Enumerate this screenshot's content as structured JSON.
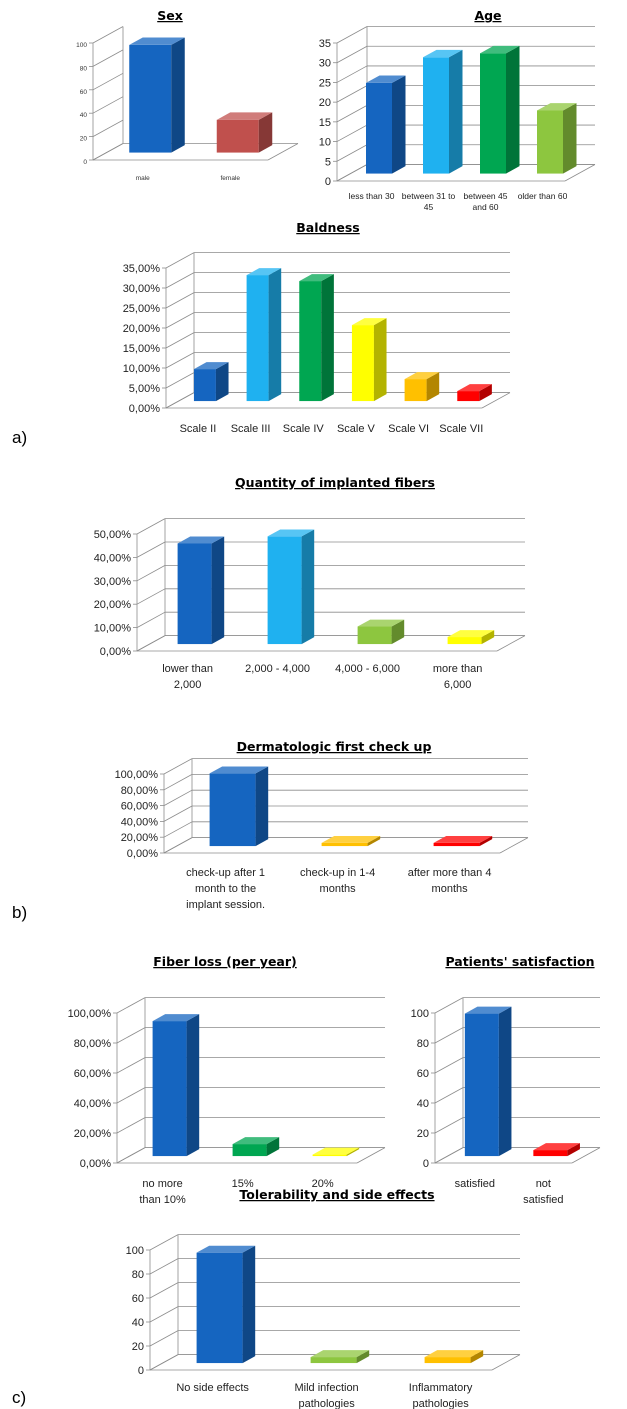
{
  "panel_labels": [
    "a)",
    "b)",
    "c)"
  ],
  "chart_data": [
    {
      "id": "sex",
      "type": "bar",
      "title": "Sex",
      "categories": [
        "male",
        "female"
      ],
      "values": [
        92,
        28
      ],
      "colors": [
        "#1565C0",
        "#C0504D"
      ],
      "ylim": [
        0,
        100
      ],
      "yticks": [
        "0",
        "20",
        "40",
        "60",
        "80",
        "100"
      ],
      "grid": false
    },
    {
      "id": "age",
      "type": "bar",
      "title": "Age",
      "categories": [
        [
          "less than 30"
        ],
        [
          "between 31 to",
          "45"
        ],
        [
          "between 45",
          "and 60"
        ],
        [
          "older than 60"
        ]
      ],
      "values": [
        23,
        29.5,
        30.5,
        16
      ],
      "colors": [
        "#1565C0",
        "#1FB1F0",
        "#00A651",
        "#8DC63F"
      ],
      "ylim": [
        0,
        35
      ],
      "yticks": [
        "0",
        "5",
        "10",
        "15",
        "20",
        "25",
        "30",
        "35"
      ],
      "grid": true
    },
    {
      "id": "baldness",
      "type": "bar",
      "title": "Baldness",
      "categories": [
        [
          "Scale II"
        ],
        [
          "Scale III"
        ],
        [
          "Scale IV"
        ],
        [
          "Scale V"
        ],
        [
          "Scale VI"
        ],
        [
          "Scale VII"
        ]
      ],
      "values": [
        8,
        31.5,
        30,
        19,
        5.5,
        2.5
      ],
      "colors": [
        "#1565C0",
        "#1FB1F0",
        "#00A651",
        "#FFFF00",
        "#FFC000",
        "#FF0000"
      ],
      "ylim": [
        0,
        35
      ],
      "yticks": [
        "0,00%",
        "5,00%",
        "10,00%",
        "15,00%",
        "20,00%",
        "25,00%",
        "30,00%",
        "35,00%"
      ],
      "grid": true
    },
    {
      "id": "fibers",
      "type": "bar",
      "title": "Quantity of implanted fibers",
      "categories": [
        [
          "lower than",
          "2,000"
        ],
        [
          "2,000 - 4,000"
        ],
        [
          "4,000 - 6,000"
        ],
        [
          "more than",
          "6,000"
        ]
      ],
      "values": [
        43,
        46,
        7.5,
        3
      ],
      "colors": [
        "#1565C0",
        "#1FB1F0",
        "#8DC63F",
        "#FFFF00"
      ],
      "ylim": [
        0,
        50
      ],
      "yticks": [
        "0,00%",
        "10,00%",
        "20,00%",
        "30,00%",
        "40,00%",
        "50,00%"
      ],
      "grid": true
    },
    {
      "id": "dermatologic",
      "type": "bar",
      "title": "Dermatologic first check up",
      "categories": [
        [
          "check-up after 1",
          "month to the",
          "implant session."
        ],
        [
          "check-up in 1-4",
          "months"
        ],
        [
          "after more than 4",
          "months"
        ]
      ],
      "values": [
        92,
        4,
        4
      ],
      "colors": [
        "#1565C0",
        "#FFC000",
        "#FF0000"
      ],
      "ylim": [
        0,
        100
      ],
      "yticks": [
        "0,00%",
        "20,00%",
        "40,00%",
        "60,00%",
        "80,00%",
        "100,00%"
      ],
      "grid": true
    },
    {
      "id": "fiberloss",
      "type": "bar",
      "title": "Fiber loss (per year)",
      "categories": [
        [
          "no more",
          "than 10%"
        ],
        [
          "15%"
        ],
        [
          "20%"
        ]
      ],
      "values": [
        90,
        8,
        1
      ],
      "colors": [
        "#1565C0",
        "#00A651",
        "#FFFF00"
      ],
      "ylim": [
        0,
        100
      ],
      "yticks": [
        "0,00%",
        "20,00%",
        "40,00%",
        "60,00%",
        "80,00%",
        "100,00%"
      ],
      "grid": true
    },
    {
      "id": "satisfaction",
      "type": "bar",
      "title": "Patients' satisfaction",
      "categories": [
        [
          "satisfied"
        ],
        [
          "not",
          "satisfied"
        ]
      ],
      "values": [
        95,
        4
      ],
      "colors": [
        "#1565C0",
        "#FF0000"
      ],
      "ylim": [
        0,
        100
      ],
      "yticks": [
        "0",
        "20",
        "40",
        "60",
        "80",
        "100"
      ],
      "grid": true
    },
    {
      "id": "tolerability",
      "type": "bar",
      "title": "Tolerability and side effects",
      "categories": [
        [
          "No side effects"
        ],
        [
          "Mild infection",
          "pathologies"
        ],
        [
          "Inflammatory",
          "pathologies"
        ]
      ],
      "values": [
        92,
        5,
        5
      ],
      "colors": [
        "#1565C0",
        "#8DC63F",
        "#FFC000"
      ],
      "ylim": [
        0,
        100
      ],
      "yticks": [
        "0",
        "20",
        "40",
        "60",
        "80",
        "100"
      ],
      "grid": true
    }
  ]
}
